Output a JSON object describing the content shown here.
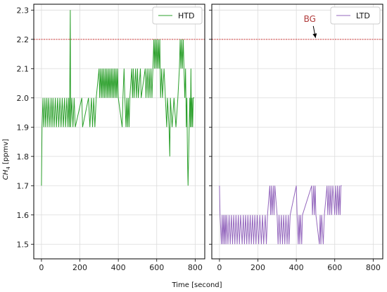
{
  "chart_data": {
    "type": "line",
    "shared_y_label": "CH4 [ppmv]",
    "shared_x_label": "Time [second]",
    "ylim": [
      1.45,
      2.32
    ],
    "yticks": [
      1.5,
      1.6,
      1.7,
      1.8,
      1.9,
      2.0,
      2.1,
      2.2,
      2.3
    ],
    "xlim": [
      -40,
      850
    ],
    "xticks": [
      0,
      200,
      400,
      600,
      800
    ],
    "grid": true,
    "reference_line": {
      "y": 2.2,
      "color": "#d62728",
      "style": "dashed"
    },
    "colors": {
      "htd": "#2ca02c",
      "ltd": "#9467bd",
      "annotation": "#b03a3a"
    },
    "panels": [
      {
        "legend": "HTD",
        "legend_position": "top-right",
        "series": {
          "name": "HTD",
          "points": [
            [
              0,
              1.7
            ],
            [
              3,
              1.9
            ],
            [
              8,
              2.0
            ],
            [
              12,
              1.9
            ],
            [
              18,
              2.0
            ],
            [
              22,
              1.9
            ],
            [
              28,
              2.0
            ],
            [
              33,
              1.9
            ],
            [
              38,
              2.0
            ],
            [
              44,
              1.9
            ],
            [
              50,
              2.0
            ],
            [
              55,
              1.9
            ],
            [
              60,
              2.0
            ],
            [
              66,
              1.9
            ],
            [
              72,
              2.0
            ],
            [
              78,
              1.9
            ],
            [
              84,
              2.0
            ],
            [
              90,
              1.9
            ],
            [
              96,
              2.0
            ],
            [
              102,
              1.9
            ],
            [
              108,
              2.0
            ],
            [
              114,
              1.9
            ],
            [
              120,
              2.0
            ],
            [
              126,
              1.9
            ],
            [
              132,
              2.0
            ],
            [
              138,
              1.9
            ],
            [
              142,
              2.0
            ],
            [
              146,
              1.9
            ],
            [
              150,
              2.3
            ],
            [
              152,
              1.9
            ],
            [
              158,
              2.0
            ],
            [
              164,
              1.9
            ],
            [
              170,
              2.0
            ],
            [
              176,
              1.9
            ],
            [
              210,
              2.0
            ],
            [
              214,
              1.9
            ],
            [
              245,
              2.0
            ],
            [
              252,
              1.9
            ],
            [
              260,
              2.0
            ],
            [
              266,
              1.9
            ],
            [
              272,
              2.0
            ],
            [
              278,
              1.9
            ],
            [
              285,
              2.0
            ],
            [
              300,
              2.1
            ],
            [
              303,
              2.0
            ],
            [
              308,
              2.1
            ],
            [
              312,
              2.0
            ],
            [
              316,
              2.1
            ],
            [
              320,
              2.0
            ],
            [
              324,
              2.1
            ],
            [
              328,
              2.0
            ],
            [
              332,
              2.1
            ],
            [
              336,
              2.0
            ],
            [
              340,
              2.1
            ],
            [
              344,
              2.0
            ],
            [
              348,
              2.1
            ],
            [
              352,
              2.0
            ],
            [
              356,
              2.1
            ],
            [
              360,
              2.0
            ],
            [
              364,
              2.1
            ],
            [
              368,
              2.0
            ],
            [
              372,
              2.1
            ],
            [
              376,
              2.0
            ],
            [
              380,
              2.1
            ],
            [
              384,
              2.0
            ],
            [
              388,
              2.1
            ],
            [
              392,
              2.0
            ],
            [
              396,
              2.1
            ],
            [
              400,
              2.0
            ],
            [
              420,
              1.9
            ],
            [
              424,
              2.0
            ],
            [
              430,
              2.1
            ],
            [
              434,
              2.0
            ],
            [
              440,
              1.9
            ],
            [
              444,
              2.0
            ],
            [
              448,
              1.9
            ],
            [
              452,
              2.0
            ],
            [
              456,
              1.9
            ],
            [
              460,
              2.0
            ],
            [
              470,
              2.1
            ],
            [
              474,
              2.0
            ],
            [
              478,
              2.1
            ],
            [
              482,
              2.0
            ],
            [
              490,
              2.1
            ],
            [
              494,
              2.0
            ],
            [
              500,
              2.1
            ],
            [
              504,
              2.0
            ],
            [
              515,
              2.1
            ],
            [
              519,
              2.0
            ],
            [
              540,
              2.1
            ],
            [
              544,
              2.0
            ],
            [
              550,
              2.1
            ],
            [
              555,
              2.0
            ],
            [
              560,
              2.1
            ],
            [
              565,
              2.0
            ],
            [
              570,
              2.1
            ],
            [
              575,
              2.0
            ],
            [
              580,
              2.1
            ],
            [
              585,
              2.2
            ],
            [
              588,
              2.1
            ],
            [
              592,
              2.2
            ],
            [
              596,
              2.1
            ],
            [
              600,
              2.2
            ],
            [
              604,
              2.1
            ],
            [
              608,
              2.2
            ],
            [
              612,
              2.1
            ],
            [
              616,
              2.2
            ],
            [
              620,
              2.0
            ],
            [
              626,
              2.1
            ],
            [
              630,
              2.0
            ],
            [
              638,
              2.1
            ],
            [
              645,
              2.0
            ],
            [
              652,
              1.9
            ],
            [
              656,
              2.0
            ],
            [
              664,
              1.9
            ],
            [
              668,
              1.8
            ],
            [
              671,
              2.0
            ],
            [
              680,
              1.9
            ],
            [
              690,
              2.0
            ],
            [
              700,
              1.9
            ],
            [
              710,
              2.0
            ],
            [
              718,
              2.1
            ],
            [
              722,
              2.2
            ],
            [
              726,
              2.1
            ],
            [
              730,
              2.2
            ],
            [
              734,
              2.1
            ],
            [
              738,
              2.2
            ],
            [
              742,
              2.1
            ],
            [
              746,
              2.0
            ],
            [
              750,
              2.1
            ],
            [
              754,
              1.9
            ],
            [
              757,
              2.0
            ],
            [
              760,
              1.8
            ],
            [
              763,
              1.7
            ],
            [
              766,
              1.8
            ],
            [
              769,
              1.9
            ],
            [
              772,
              2.0
            ],
            [
              775,
              1.9
            ],
            [
              778,
              2.1
            ],
            [
              781,
              1.9
            ],
            [
              784,
              2.0
            ],
            [
              787,
              1.9
            ],
            [
              790,
              2.0
            ],
            [
              795,
              2.0
            ]
          ]
        }
      },
      {
        "legend": "LTD",
        "legend_position": "top-right",
        "annotation": {
          "text": "BG",
          "x": 470,
          "y": 2.26,
          "arrow_to": [
            500,
            2.205
          ]
        },
        "series": {
          "name": "LTD",
          "points": [
            [
              0,
              1.7
            ],
            [
              3,
              1.6
            ],
            [
              10,
              1.5
            ],
            [
              14,
              1.6
            ],
            [
              18,
              1.5
            ],
            [
              22,
              1.6
            ],
            [
              26,
              1.5
            ],
            [
              30,
              1.6
            ],
            [
              34,
              1.5
            ],
            [
              38,
              1.6
            ],
            [
              44,
              1.5
            ],
            [
              50,
              1.6
            ],
            [
              56,
              1.5
            ],
            [
              62,
              1.6
            ],
            [
              68,
              1.5
            ],
            [
              74,
              1.6
            ],
            [
              80,
              1.5
            ],
            [
              86,
              1.6
            ],
            [
              92,
              1.5
            ],
            [
              98,
              1.6
            ],
            [
              104,
              1.5
            ],
            [
              110,
              1.6
            ],
            [
              118,
              1.5
            ],
            [
              124,
              1.6
            ],
            [
              130,
              1.5
            ],
            [
              136,
              1.6
            ],
            [
              142,
              1.5
            ],
            [
              148,
              1.6
            ],
            [
              154,
              1.5
            ],
            [
              160,
              1.6
            ],
            [
              166,
              1.5
            ],
            [
              172,
              1.6
            ],
            [
              178,
              1.5
            ],
            [
              184,
              1.6
            ],
            [
              190,
              1.5
            ],
            [
              196,
              1.6
            ],
            [
              204,
              1.5
            ],
            [
              210,
              1.6
            ],
            [
              218,
              1.5
            ],
            [
              224,
              1.6
            ],
            [
              230,
              1.5
            ],
            [
              238,
              1.6
            ],
            [
              244,
              1.5
            ],
            [
              250,
              1.6
            ],
            [
              262,
              1.7
            ],
            [
              266,
              1.6
            ],
            [
              270,
              1.7
            ],
            [
              274,
              1.6
            ],
            [
              280,
              1.7
            ],
            [
              284,
              1.6
            ],
            [
              288,
              1.7
            ],
            [
              300,
              1.6
            ],
            [
              305,
              1.5
            ],
            [
              310,
              1.6
            ],
            [
              316,
              1.5
            ],
            [
              322,
              1.6
            ],
            [
              328,
              1.5
            ],
            [
              334,
              1.6
            ],
            [
              340,
              1.5
            ],
            [
              346,
              1.6
            ],
            [
              352,
              1.5
            ],
            [
              358,
              1.6
            ],
            [
              362,
              1.5
            ],
            [
              368,
              1.6
            ],
            [
              400,
              1.7
            ],
            [
              404,
              1.6
            ],
            [
              410,
              1.5
            ],
            [
              414,
              1.6
            ],
            [
              418,
              1.5
            ],
            [
              422,
              1.6
            ],
            [
              428,
              1.5
            ],
            [
              432,
              1.6
            ],
            [
              480,
              1.7
            ],
            [
              484,
              1.6
            ],
            [
              490,
              1.7
            ],
            [
              494,
              1.6
            ],
            [
              498,
              1.7
            ],
            [
              502,
              1.6
            ],
            [
              520,
              1.5
            ],
            [
              524,
              1.6
            ],
            [
              528,
              1.5
            ],
            [
              532,
              1.6
            ],
            [
              540,
              1.5
            ],
            [
              546,
              1.6
            ],
            [
              560,
              1.7
            ],
            [
              564,
              1.6
            ],
            [
              570,
              1.7
            ],
            [
              574,
              1.6
            ],
            [
              580,
              1.7
            ],
            [
              584,
              1.6
            ],
            [
              590,
              1.7
            ],
            [
              600,
              1.6
            ],
            [
              604,
              1.7
            ],
            [
              610,
              1.6
            ],
            [
              614,
              1.7
            ],
            [
              620,
              1.6
            ],
            [
              624,
              1.7
            ],
            [
              628,
              1.6
            ],
            [
              632,
              1.7
            ],
            [
              636,
              1.7
            ]
          ]
        }
      }
    ]
  }
}
